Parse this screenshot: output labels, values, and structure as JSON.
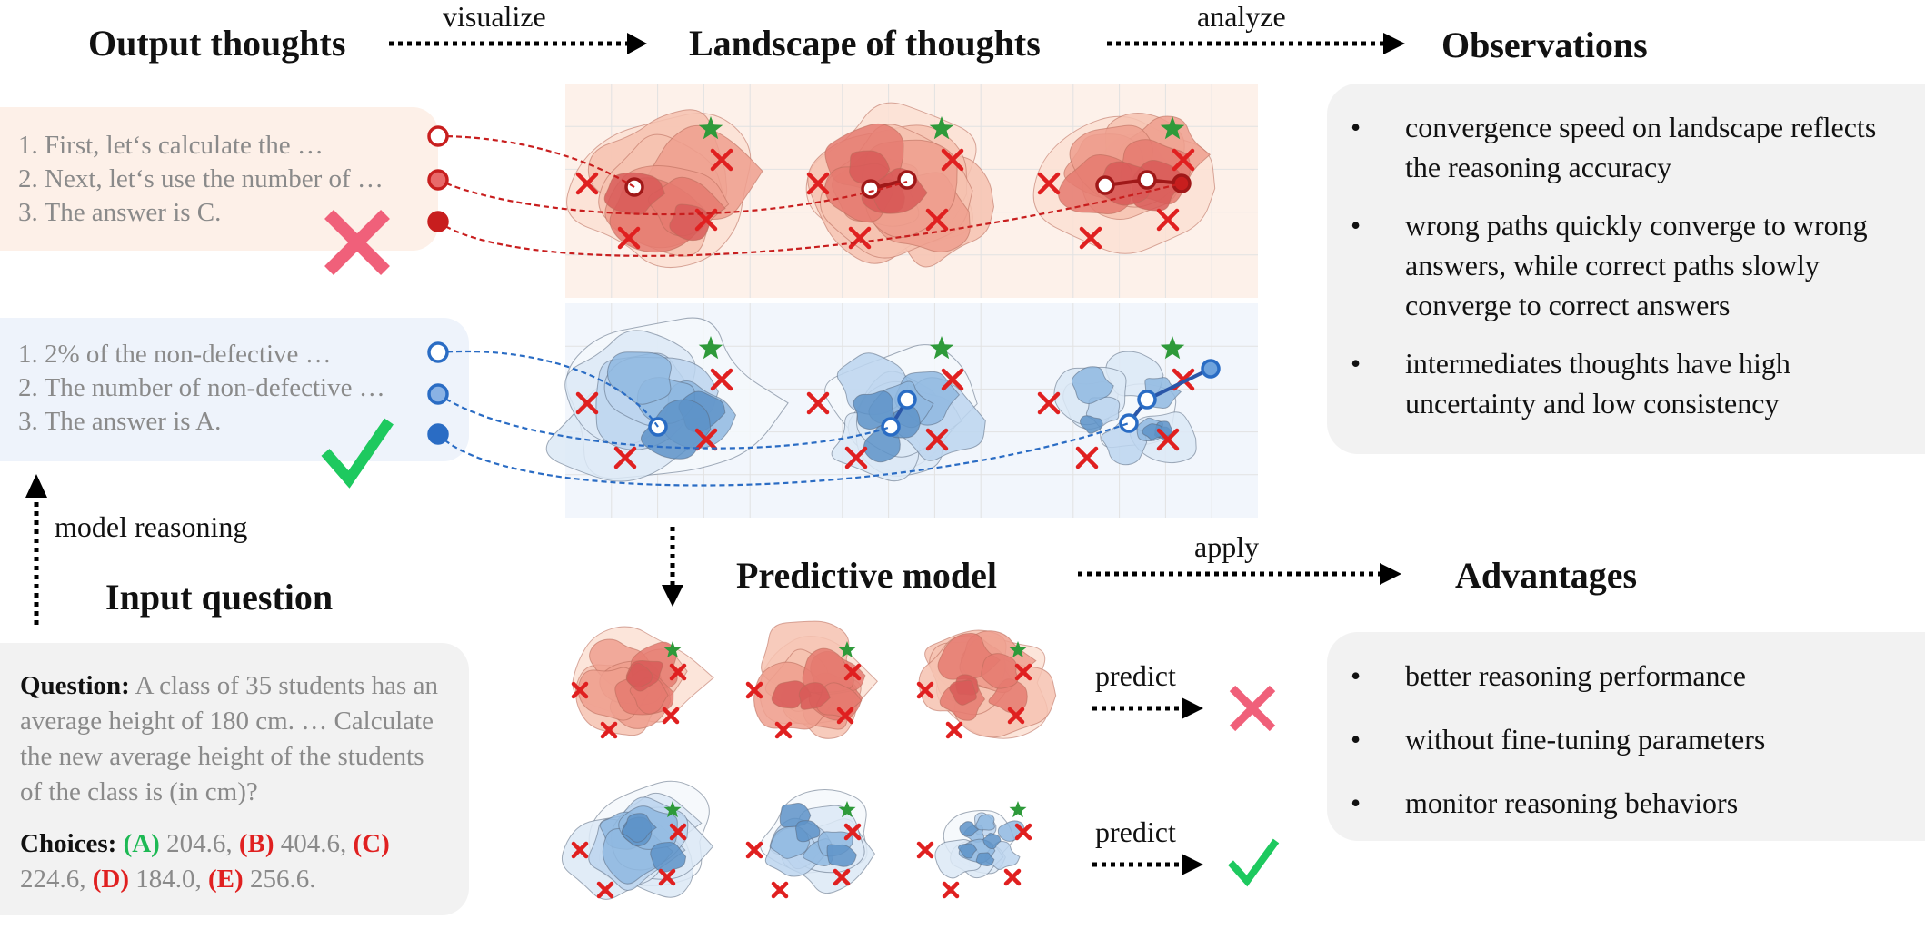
{
  "headings": {
    "output_thoughts": "Output thoughts",
    "landscape": "Landscape of thoughts",
    "observations": "Observations",
    "input_question": "Input question",
    "predictive_model": "Predictive model",
    "advantages": "Advantages"
  },
  "arrow_labels": {
    "visualize": "visualize",
    "analyze": "analyze",
    "model_reasoning": "model reasoning",
    "apply": "apply",
    "predict_top": "predict",
    "predict_bottom": "predict"
  },
  "wrong_thoughts": [
    "1. First, let‘s calculate the …",
    "2. Next, let‘s use the number of …",
    "3. The answer is C."
  ],
  "correct_thoughts": [
    "1. 2% of the non-defective …",
    "2. The number of non-defective …",
    "3. The answer is A."
  ],
  "observations": [
    "convergence speed on landscape reflects the reasoning accuracy",
    "wrong paths quickly converge to wrong answers, while correct paths slowly converge to correct answers",
    "intermediates thoughts have high uncertainty and low consistency"
  ],
  "advantages": [
    "better reasoning performance",
    "without fine-tuning parameters",
    "monitor reasoning behaviors"
  ],
  "bullet_char": "•",
  "question": {
    "label": "Question:",
    "text": "A class of 35 students has an average height of 180 cm. … Calculate the new average height of the students of the class is (in cm)?",
    "choices_label": "Choices:",
    "choices": [
      {
        "key": "(A)",
        "value": "204.6,",
        "correct": true
      },
      {
        "key": "(B)",
        "value": "404.6,",
        "correct": false
      },
      {
        "key": "(C)",
        "value": "224.6,",
        "correct": false
      },
      {
        "key": "(D)",
        "value": "184.0,",
        "correct": false
      },
      {
        "key": "(E)",
        "value": "256.6.",
        "correct": false
      }
    ]
  },
  "colors": {
    "wrong_box_bg": "#fdf0e8",
    "correct_box_bg": "#eef3fb",
    "grey_box_bg": "#f2f2f2",
    "red_path": "#c81e1e",
    "blue_path": "#2a6cc4",
    "cross_red": "#e02020",
    "star_green": "#2e9a3a",
    "big_cross_pink": "#f0607a",
    "check_green": "#1ec95f"
  },
  "icons": [
    "cross-mark-icon",
    "check-mark-icon",
    "star-icon",
    "arrow-right-icon",
    "arrow-up-icon",
    "arrow-down-icon"
  ]
}
